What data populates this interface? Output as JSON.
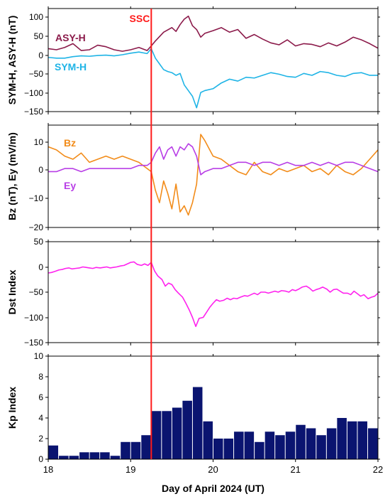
{
  "chart_data": {
    "type": "line",
    "xlabel": "Day of April 2024 (UT)",
    "xlim": [
      18,
      22
    ],
    "xticks": [
      "18",
      "19",
      "20",
      "21",
      "22"
    ],
    "event": {
      "label": "SSC",
      "x": 19.25,
      "color": "#ff1a1a"
    },
    "panels": [
      {
        "id": "sym-asy",
        "type": "line",
        "ylabel": "SYM-H, ASY-H (nT)",
        "ylim": [
          -150,
          120
        ],
        "yticks": [
          "100",
          "50",
          "0",
          "−50",
          "−100",
          "−150"
        ],
        "series": [
          {
            "name": "ASY-H",
            "color": "#8b1a4a",
            "x": [
              18.0,
              18.1,
              18.2,
              18.3,
              18.4,
              18.5,
              18.6,
              18.7,
              18.8,
              18.9,
              19.0,
              19.1,
              19.2,
              19.25,
              19.3,
              19.4,
              19.5,
              19.55,
              19.6,
              19.65,
              19.7,
              19.75,
              19.8,
              19.85,
              19.9,
              20.0,
              20.1,
              20.2,
              20.3,
              20.4,
              20.5,
              20.6,
              20.7,
              20.8,
              20.9,
              21.0,
              21.1,
              21.2,
              21.3,
              21.4,
              21.5,
              21.6,
              21.7,
              21.8,
              21.9,
              22.0
            ],
            "values": [
              15,
              12,
              18,
              28,
              10,
              12,
              24,
              20,
              12,
              8,
              12,
              18,
              10,
              22,
              35,
              58,
              70,
              60,
              78,
              92,
              100,
              75,
              65,
              45,
              55,
              62,
              70,
              58,
              65,
              42,
              52,
              40,
              30,
              25,
              38,
              22,
              28,
              26,
              20,
              30,
              22,
              32,
              45,
              38,
              28,
              16
            ]
          },
          {
            "name": "SYM-H",
            "color": "#1fb4e6",
            "x": [
              18.0,
              18.1,
              18.2,
              18.3,
              18.4,
              18.5,
              18.6,
              18.7,
              18.8,
              18.9,
              19.0,
              19.1,
              19.2,
              19.25,
              19.3,
              19.35,
              19.4,
              19.45,
              19.5,
              19.55,
              19.6,
              19.65,
              19.7,
              19.75,
              19.8,
              19.85,
              19.9,
              20.0,
              20.1,
              20.2,
              20.3,
              20.4,
              20.5,
              20.6,
              20.7,
              20.8,
              20.9,
              21.0,
              21.1,
              21.2,
              21.3,
              21.4,
              21.5,
              21.6,
              21.7,
              21.8,
              21.9,
              22.0
            ],
            "values": [
              -8,
              -10,
              -10,
              -6,
              -4,
              -5,
              -3,
              -2,
              -4,
              -1,
              3,
              6,
              2,
              15,
              -10,
              -25,
              -40,
              -45,
              -48,
              -55,
              -50,
              -80,
              -95,
              -110,
              -140,
              -100,
              -95,
              -90,
              -75,
              -65,
              -70,
              -60,
              -62,
              -55,
              -48,
              -52,
              -58,
              -60,
              -50,
              -55,
              -45,
              -48,
              -55,
              -58,
              -50,
              -48,
              -55,
              -55
            ]
          }
        ]
      },
      {
        "id": "bz-ey",
        "type": "line",
        "ylabel": "Bz (nT), Ey (mV/m)",
        "ylim": [
          -20,
          13
        ],
        "yticks": [
          "10",
          "0",
          "−10",
          "−20"
        ],
        "series": [
          {
            "name": "Bz",
            "color": "#f28c1a",
            "x": [
              18.0,
              18.1,
              18.2,
              18.3,
              18.4,
              18.5,
              18.6,
              18.7,
              18.8,
              18.9,
              19.0,
              19.1,
              19.2,
              19.25,
              19.3,
              19.35,
              19.4,
              19.45,
              19.5,
              19.55,
              19.6,
              19.65,
              19.7,
              19.75,
              19.8,
              19.85,
              19.9,
              20.0,
              20.1,
              20.2,
              20.3,
              20.4,
              20.5,
              20.6,
              20.7,
              20.8,
              20.9,
              21.0,
              21.1,
              21.2,
              21.3,
              21.4,
              21.5,
              21.6,
              21.7,
              21.8,
              21.9,
              22.0
            ],
            "values": [
              6,
              5,
              3,
              2,
              4,
              1,
              2,
              3,
              2,
              3,
              2,
              1,
              -1,
              -2,
              -8,
              -12,
              -5,
              -9,
              -14,
              -6,
              -15,
              -13,
              -16,
              -12,
              -6,
              10,
              8,
              3,
              2,
              0,
              -2,
              -3,
              1,
              -2,
              -3,
              -1,
              -2,
              -1,
              0,
              -2,
              -1,
              -3,
              0,
              -2,
              -3,
              -1,
              2,
              5
            ]
          },
          {
            "name": "Ey",
            "color": "#b83ee6",
            "x": [
              18.0,
              18.1,
              18.2,
              18.3,
              18.4,
              18.5,
              18.6,
              18.7,
              18.8,
              18.9,
              19.0,
              19.1,
              19.2,
              19.25,
              19.3,
              19.35,
              19.4,
              19.45,
              19.5,
              19.55,
              19.6,
              19.65,
              19.7,
              19.75,
              19.8,
              19.85,
              19.9,
              20.0,
              20.1,
              20.2,
              20.3,
              20.4,
              20.5,
              20.6,
              20.7,
              20.8,
              20.9,
              21.0,
              21.1,
              21.2,
              21.3,
              21.4,
              21.5,
              21.6,
              21.7,
              21.8,
              21.9,
              22.0
            ],
            "values": [
              -2,
              -2,
              -1,
              -1,
              -2,
              -1,
              -1,
              -1,
              -1,
              -1,
              -1,
              0,
              0,
              1,
              4,
              6,
              2,
              5,
              6,
              3,
              6,
              5,
              7,
              6,
              3,
              -3,
              -2,
              -1,
              -1,
              0,
              1,
              1,
              0,
              1,
              1,
              0,
              1,
              0,
              0,
              1,
              0,
              1,
              0,
              1,
              1,
              0,
              -1,
              -2
            ]
          }
        ]
      },
      {
        "id": "dst",
        "type": "line",
        "ylabel": "Dst Index",
        "ylim": [
          -150,
          50
        ],
        "yticks": [
          "50",
          "0",
          "−50",
          "−100",
          "−150"
        ],
        "series": [
          {
            "name": "",
            "color": "#ff22ee",
            "x": [
              18.0,
              18.04,
              18.08,
              18.13,
              18.17,
              18.21,
              18.25,
              18.29,
              18.33,
              18.38,
              18.42,
              18.46,
              18.5,
              18.54,
              18.58,
              18.63,
              18.67,
              18.71,
              18.75,
              18.79,
              18.83,
              18.88,
              18.92,
              18.96,
              19.0,
              19.04,
              19.08,
              19.13,
              19.17,
              19.21,
              19.25,
              19.29,
              19.33,
              19.38,
              19.42,
              19.46,
              19.5,
              19.54,
              19.58,
              19.63,
              19.67,
              19.71,
              19.75,
              19.79,
              19.83,
              19.88,
              19.92,
              19.96,
              20.0,
              20.04,
              20.08,
              20.13,
              20.17,
              20.21,
              20.25,
              20.29,
              20.33,
              20.38,
              20.42,
              20.46,
              20.5,
              20.54,
              20.58,
              20.63,
              20.67,
              20.71,
              20.75,
              20.79,
              20.83,
              20.88,
              20.92,
              20.96,
              21.0,
              21.04,
              21.08,
              21.13,
              21.17,
              21.21,
              21.25,
              21.29,
              21.33,
              21.38,
              21.42,
              21.46,
              21.5,
              21.54,
              21.58,
              21.63,
              21.67,
              21.71,
              21.75,
              21.79,
              21.83,
              21.88,
              21.92,
              21.96,
              22.0
            ],
            "values": [
              -12,
              -11,
              -9,
              -6,
              -5,
              -3,
              -2,
              -4,
              -3,
              -2,
              0,
              -1,
              -2,
              -3,
              -1,
              -2,
              -1,
              0,
              -2,
              -1,
              0,
              2,
              3,
              6,
              9,
              10,
              5,
              3,
              6,
              3,
              9,
              -8,
              -18,
              -25,
              -38,
              -32,
              -35,
              -45,
              -52,
              -60,
              -72,
              -85,
              -100,
              -118,
              -102,
              -100,
              -90,
              -80,
              -72,
              -65,
              -68,
              -66,
              -62,
              -65,
              -62,
              -63,
              -60,
              -57,
              -58,
              -55,
              -52,
              -55,
              -50,
              -50,
              -52,
              -50,
              -48,
              -50,
              -47,
              -48,
              -50,
              -45,
              -47,
              -44,
              -40,
              -38,
              -42,
              -48,
              -45,
              -43,
              -40,
              -44,
              -50,
              -45,
              -44,
              -48,
              -52,
              -52,
              -55,
              -48,
              -53,
              -58,
              -55,
              -63,
              -60,
              -58,
              -52
            ]
          }
        ]
      },
      {
        "id": "kp",
        "type": "bar",
        "ylabel": "Kp Index",
        "ylim": [
          0,
          10
        ],
        "yticks": [
          "10",
          "8",
          "6",
          "4",
          "2",
          "0"
        ],
        "bar_width": 0.125,
        "bar_color": "#0a1470",
        "x": [
          18.0,
          18.125,
          18.25,
          18.375,
          18.5,
          18.625,
          18.75,
          18.875,
          19.0,
          19.125,
          19.25,
          19.375,
          19.5,
          19.625,
          19.75,
          19.875,
          20.0,
          20.125,
          20.25,
          20.375,
          20.5,
          20.625,
          20.75,
          20.875,
          21.0,
          21.125,
          21.25,
          21.375,
          21.5,
          21.625,
          21.75,
          21.875
        ],
        "values": [
          1.33,
          0.33,
          0.33,
          0.67,
          0.67,
          0.67,
          0.33,
          1.67,
          1.67,
          2.33,
          4.67,
          4.67,
          5.0,
          5.67,
          7.0,
          3.67,
          2.0,
          2.0,
          2.67,
          2.67,
          1.67,
          2.67,
          2.33,
          2.67,
          3.33,
          3.0,
          2.33,
          3.0,
          4.0,
          3.67,
          3.67,
          3.0
        ]
      }
    ]
  }
}
